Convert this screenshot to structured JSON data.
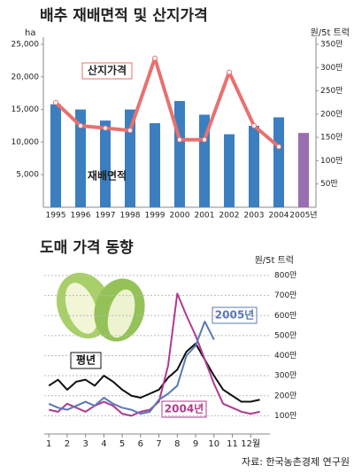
{
  "chart_data": [
    {
      "type": "bar_line",
      "title": "배추 재배면적 및 산지가격",
      "ylabel": "ha",
      "y2label": "원/5t 트럭",
      "categories": [
        "1995",
        "1996",
        "1997",
        "1998",
        "1999",
        "2000",
        "2001",
        "2002",
        "2003",
        "2004",
        "2005년"
      ],
      "ylim": [
        0,
        25000
      ],
      "yticks": [
        {
          "value": 5000,
          "label": "5,000"
        },
        {
          "value": 10000,
          "label": "10,000"
        },
        {
          "value": 15000,
          "label": "15,000"
        },
        {
          "value": 20000,
          "label": "20,000"
        },
        {
          "value": 25000,
          "label": "25,000"
        }
      ],
      "y2lim": [
        0,
        3500000
      ],
      "y2ticks": [
        {
          "value": 500000,
          "label": "50만"
        },
        {
          "value": 1000000,
          "label": "100만"
        },
        {
          "value": 1500000,
          "label": "150만"
        },
        {
          "value": 2000000,
          "label": "200만"
        },
        {
          "value": 2500000,
          "label": "250만"
        },
        {
          "value": 3000000,
          "label": "300만"
        },
        {
          "value": 3500000,
          "label": "350만"
        }
      ],
      "series": [
        {
          "name": "재배면적",
          "type": "bar",
          "color": "#3b7fc0",
          "colors": [
            "#3b7fc0",
            "#3b7fc0",
            "#3b7fc0",
            "#3b7fc0",
            "#3b7fc0",
            "#3b7fc0",
            "#3b7fc0",
            "#3b7fc0",
            "#3b7fc0",
            "#3b7fc0",
            "#9a6fb2"
          ],
          "values": [
            15800,
            15000,
            13300,
            15000,
            12900,
            16300,
            14200,
            11200,
            12500,
            13800,
            11400
          ]
        },
        {
          "name": "산지가격",
          "type": "line",
          "axis": "y2",
          "color": "#e8716f",
          "values": [
            2250000,
            1750000,
            1700000,
            1650000,
            3200000,
            1450000,
            1450000,
            2900000,
            1750000,
            1300000,
            null
          ]
        }
      ]
    },
    {
      "type": "line",
      "title": "도매 가격 동향",
      "ylabel": "원/5t 트럭",
      "x": [
        1,
        1.5,
        2,
        2.5,
        3,
        3.5,
        4,
        4.5,
        5,
        5.5,
        6,
        6.5,
        7,
        7.5,
        8,
        8.5,
        9,
        9.5,
        10,
        10.5,
        11,
        11.5,
        12,
        12.5
      ],
      "xlim": [
        0.75,
        13.05
      ],
      "xticks": [
        1,
        2,
        3,
        4,
        5,
        6,
        7,
        8,
        9,
        10,
        11,
        {
          "value": 12,
          "label": "12월"
        }
      ],
      "ylim": [
        0,
        8000000
      ],
      "yticks": [
        {
          "value": 1000000,
          "label": "100만"
        },
        {
          "value": 2000000,
          "label": "200만"
        },
        {
          "value": 3000000,
          "label": "300만"
        },
        {
          "value": 4000000,
          "label": "400만"
        },
        {
          "value": 5000000,
          "label": "500만"
        },
        {
          "value": 6000000,
          "label": "600만"
        },
        {
          "value": 7000000,
          "label": "700만"
        },
        {
          "value": 8000000,
          "label": "800만"
        }
      ],
      "grid": true,
      "series": [
        {
          "name": "평년",
          "color": "#111111",
          "values": [
            2500000,
            2800000,
            2300000,
            2700000,
            2800000,
            2500000,
            3000000,
            2700000,
            2300000,
            2000000,
            1900000,
            2100000,
            2300000,
            2900000,
            3300000,
            4200000,
            4600000,
            3800000,
            3000000,
            2300000,
            2000000,
            1700000,
            1700000,
            1800000
          ]
        },
        {
          "name": "2004년",
          "color": "#b03a8e",
          "values": [
            1300000,
            1200000,
            1600000,
            1400000,
            1200000,
            1500000,
            1700000,
            1500000,
            1100000,
            1000000,
            1200000,
            1300000,
            1700000,
            3500000,
            7100000,
            6000000,
            5000000,
            3800000,
            2600000,
            1600000,
            1400000,
            1200000,
            1100000,
            1200000
          ]
        },
        {
          "name": "2005년",
          "color": "#5b78b6",
          "values": [
            1600000,
            1400000,
            1300000,
            1500000,
            1700000,
            1500000,
            1900000,
            1600000,
            1400000,
            1300000,
            1100000,
            1200000,
            1800000,
            2100000,
            2500000,
            4000000,
            4500000,
            5700000,
            4800000,
            null,
            null,
            null,
            null,
            null
          ]
        }
      ]
    }
  ],
  "source": "자료: 한국농촌경제 연구원"
}
